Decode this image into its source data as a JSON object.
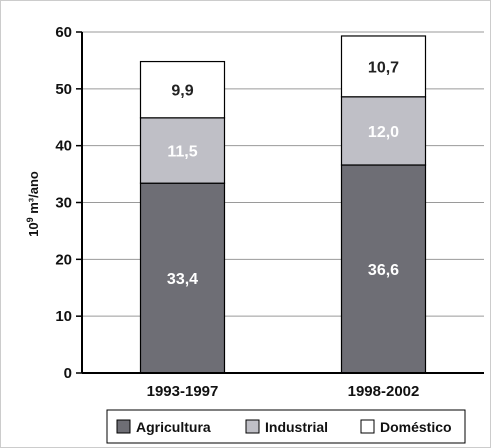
{
  "chart_data": {
    "type": "bar",
    "stacked": true,
    "categories": [
      "1993-1997",
      "1998-2002"
    ],
    "series": [
      {
        "name": "Agricultura",
        "values": [
          33.4,
          36.6
        ],
        "labels": [
          "33,4",
          "36,6"
        ],
        "color": "#6e6e75",
        "label_color": "#ffffff"
      },
      {
        "name": "Industrial",
        "values": [
          11.5,
          12.0
        ],
        "labels": [
          "11,5",
          "12,0"
        ],
        "color": "#bfbfc6",
        "label_color": "#ffffff"
      },
      {
        "name": "Doméstico",
        "values": [
          9.9,
          10.7
        ],
        "labels": [
          "9,9",
          "10,7"
        ],
        "color": "#ffffff",
        "label_color": "#222222"
      }
    ],
    "ylabel_base": "10",
    "ylabel_exp": "9",
    "ylabel_rest": " m³/ano",
    "ylim": [
      0,
      60
    ],
    "yticks": [
      "0",
      "10",
      "20",
      "30",
      "40",
      "50",
      "60"
    ],
    "grid": true,
    "legend": "bottom"
  }
}
